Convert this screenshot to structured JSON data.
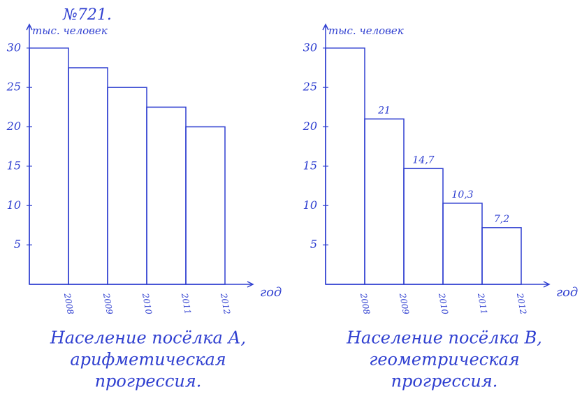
{
  "title": "№721.",
  "chart_data": [
    {
      "type": "bar",
      "y_label": "тыс. человек",
      "x_label": "год",
      "categories": [
        "2008",
        "2009",
        "2010",
        "2011",
        "2012"
      ],
      "values": [
        30,
        27.5,
        25,
        22.5,
        20
      ],
      "ylim": [
        0,
        33
      ],
      "yticks": [
        5,
        10,
        15,
        20,
        25,
        30
      ],
      "color": "#2f3fd0",
      "caption": [
        "Население посёлка А,",
        "арифметическая",
        "прогрессия."
      ]
    },
    {
      "type": "bar",
      "y_label": "тыс. человек",
      "x_label": "год",
      "categories": [
        "2008",
        "2009",
        "2010",
        "2011",
        "2012"
      ],
      "values": [
        30,
        21,
        14.7,
        10.3,
        7.2
      ],
      "value_labels": [
        null,
        "21",
        "14,7",
        "10,3",
        "7,2"
      ],
      "ylim": [
        0,
        33
      ],
      "yticks": [
        5,
        10,
        15,
        20,
        25,
        30
      ],
      "color": "#2f3fd0",
      "caption": [
        "Население посёлка В,",
        "геометрическая",
        "прогрессия."
      ]
    }
  ]
}
